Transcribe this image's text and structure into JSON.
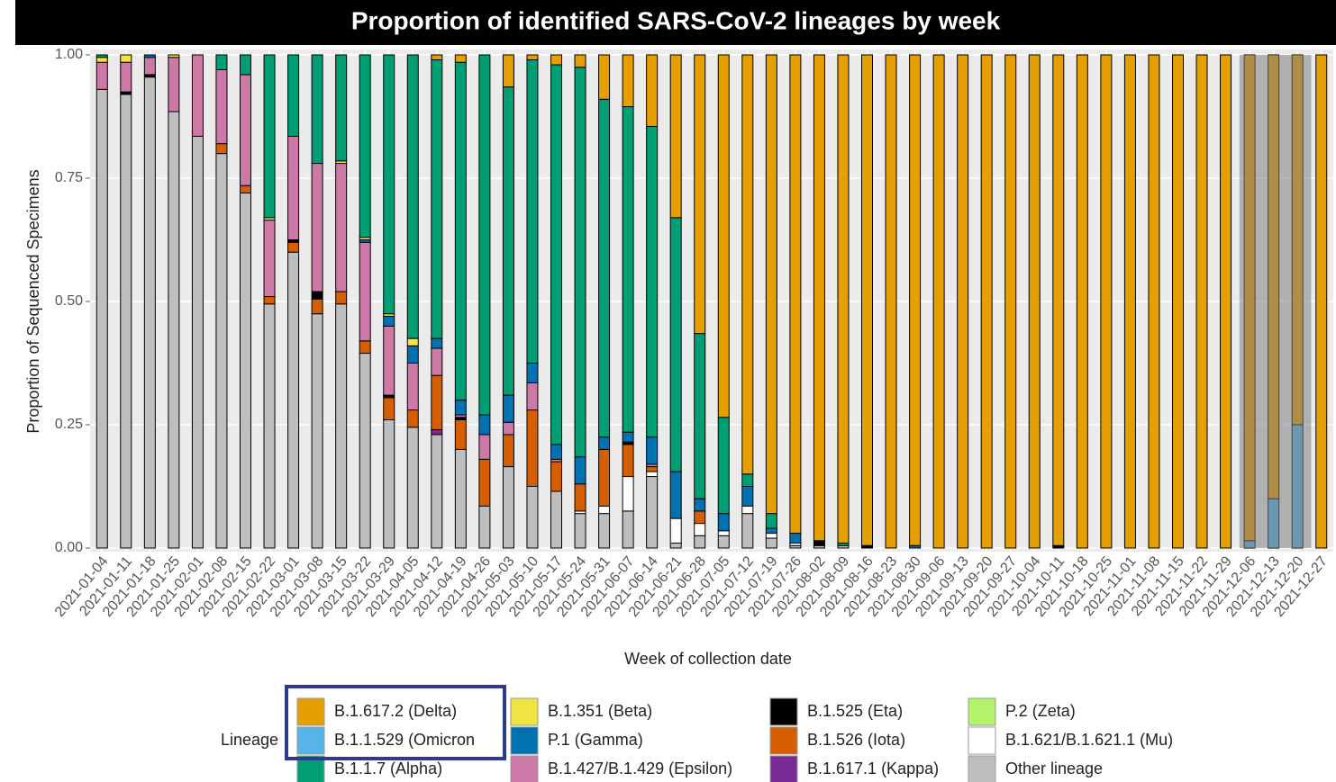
{
  "chart_data": {
    "type": "stacked_bar",
    "title": "Proportion of identified SARS-CoV-2 lineages by week",
    "x_label": "Week of collection date",
    "y_label": "Proportion of Sequenced Specimens",
    "legend_title": "Lineage",
    "categories": [
      "2021-01-04",
      "2021-01-11",
      "2021-01-18",
      "2021-01-25",
      "2021-02-01",
      "2021-02-08",
      "2021-02-15",
      "2021-02-22",
      "2021-03-01",
      "2021-03-08",
      "2021-03-15",
      "2021-03-22",
      "2021-03-29",
      "2021-04-05",
      "2021-04-12",
      "2021-04-19",
      "2021-04-26",
      "2021-05-03",
      "2021-05-10",
      "2021-05-17",
      "2021-05-24",
      "2021-05-31",
      "2021-06-07",
      "2021-06-14",
      "2021-06-21",
      "2021-06-28",
      "2021-07-05",
      "2021-07-12",
      "2021-07-19",
      "2021-07-26",
      "2021-08-02",
      "2021-08-09",
      "2021-08-16",
      "2021-08-23",
      "2021-08-30",
      "2021-09-06",
      "2021-09-13",
      "2021-09-20",
      "2021-09-27",
      "2021-10-04",
      "2021-10-11",
      "2021-10-18",
      "2021-10-25",
      "2021-11-01",
      "2021-11-08",
      "2021-11-15",
      "2021-11-22",
      "2021-11-29",
      "2021-12-06",
      "2021-12-13",
      "2021-12-20",
      "2021-12-27"
    ],
    "ylim": [
      0,
      1
    ],
    "yticks": [
      {
        "value": 0,
        "label": "0.00"
      },
      0.25,
      {
        "value": 0.5,
        "label": "0.50"
      },
      0.75,
      {
        "value": 1,
        "label": "1.00"
      }
    ],
    "grid": true,
    "series": [
      {
        "name": "B.1.617.2 (Delta)",
        "color": "#E69F00",
        "values": [
          0,
          0,
          0,
          0,
          0,
          0,
          0,
          0,
          0,
          0,
          0,
          0,
          0,
          0,
          0.01,
          0.015,
          0,
          0.065,
          0.01,
          0.02,
          0.025,
          0.09,
          0.105,
          0.145,
          0.33,
          0.565,
          0.735,
          0.85,
          0.93,
          0.97,
          0.985,
          0.99,
          0.995,
          1,
          0.995,
          1,
          1,
          1,
          1,
          1,
          0.995,
          1,
          1,
          1,
          1,
          1,
          1,
          1,
          0.985,
          0.9,
          0.75,
          1
        ]
      },
      {
        "name": "B.1.1.529 (Omicron",
        "color": "#56B4E9",
        "values": [
          0,
          0,
          0,
          0,
          0,
          0,
          0,
          0,
          0,
          0,
          0,
          0,
          0,
          0,
          0,
          0,
          0,
          0,
          0,
          0,
          0,
          0,
          0,
          0,
          0,
          0,
          0,
          0,
          0,
          0,
          0,
          0,
          0,
          0,
          0,
          0,
          0,
          0,
          0,
          0,
          0,
          0,
          0,
          0,
          0,
          0,
          0,
          0,
          0.015,
          0.1,
          0.25,
          0
        ]
      },
      {
        "name": "B.1.1.7 (Alpha)",
        "color": "#009E73",
        "values": [
          0.005,
          0,
          0,
          0,
          0,
          0.03,
          0.04,
          0.33,
          0.165,
          0.22,
          0.215,
          0.37,
          0.525,
          0.575,
          0.565,
          0.685,
          0.73,
          0.625,
          0.615,
          0.77,
          0.79,
          0.685,
          0.66,
          0.63,
          0.515,
          0.335,
          0.195,
          0.025,
          0.03,
          0,
          0,
          0.005,
          0,
          0,
          0,
          0,
          0,
          0,
          0,
          0,
          0,
          0,
          0,
          0,
          0,
          0,
          0,
          0,
          0,
          0,
          0,
          0
        ]
      },
      {
        "name": "B.1.351 (Beta)",
        "color": "#F0E442",
        "values": [
          0.01,
          0.015,
          0,
          0.005,
          0,
          0,
          0,
          0.005,
          0,
          0,
          0.005,
          0.005,
          0.005,
          0.015,
          0,
          0,
          0,
          0,
          0,
          0,
          0,
          0,
          0,
          0,
          0,
          0,
          0,
          0,
          0,
          0,
          0,
          0,
          0,
          0,
          0,
          0,
          0,
          0,
          0,
          0,
          0,
          0,
          0,
          0,
          0,
          0,
          0,
          0,
          0,
          0,
          0,
          0
        ]
      },
      {
        "name": "P.1 (Gamma)",
        "color": "#0072B2",
        "values": [
          0,
          0,
          0.005,
          0,
          0,
          0,
          0,
          0,
          0,
          0,
          0,
          0.005,
          0.02,
          0.035,
          0.02,
          0.03,
          0.04,
          0.055,
          0.04,
          0.03,
          0.055,
          0.025,
          0.02,
          0.055,
          0.095,
          0.025,
          0.035,
          0.04,
          0.01,
          0.02,
          0,
          0,
          0,
          0,
          0.005,
          0,
          0,
          0,
          0,
          0,
          0,
          0,
          0,
          0,
          0,
          0,
          0,
          0,
          0,
          0,
          0,
          0
        ]
      },
      {
        "name": "B.1.427/B.1.429 (Epsilon)",
        "color": "#CC79A7",
        "values": [
          0.055,
          0.06,
          0.035,
          0.11,
          0.165,
          0.15,
          0.225,
          0.155,
          0.21,
          0.26,
          0.26,
          0.2,
          0.14,
          0.095,
          0.055,
          0.005,
          0.05,
          0.025,
          0.055,
          0.005,
          0,
          0,
          0,
          0.005,
          0,
          0,
          0,
          0,
          0,
          0,
          0,
          0,
          0,
          0,
          0,
          0,
          0,
          0,
          0,
          0,
          0,
          0,
          0,
          0,
          0,
          0,
          0,
          0,
          0,
          0,
          0,
          0
        ]
      },
      {
        "name": "B.1.525 (Eta)",
        "color": "#000000",
        "values": [
          0,
          0.005,
          0.005,
          0,
          0,
          0,
          0,
          0,
          0.005,
          0.015,
          0,
          0,
          0.005,
          0,
          0,
          0.005,
          0,
          0,
          0,
          0,
          0,
          0,
          0.005,
          0,
          0,
          0,
          0,
          0,
          0,
          0,
          0.01,
          0,
          0.005,
          0,
          0,
          0,
          0,
          0,
          0,
          0,
          0.005,
          0,
          0,
          0,
          0,
          0,
          0,
          0,
          0,
          0,
          0,
          0
        ]
      },
      {
        "name": "B.1.526 (Iota)",
        "color": "#D55E00",
        "values": [
          0,
          0,
          0,
          0,
          0,
          0.02,
          0.015,
          0.015,
          0.02,
          0.03,
          0.025,
          0.025,
          0.045,
          0.035,
          0.11,
          0.06,
          0.095,
          0.065,
          0.155,
          0.06,
          0.055,
          0.115,
          0.065,
          0.01,
          0,
          0.025,
          0,
          0,
          0,
          0,
          0,
          0,
          0,
          0,
          0,
          0,
          0,
          0,
          0,
          0,
          0,
          0,
          0,
          0,
          0,
          0,
          0,
          0,
          0,
          0,
          0,
          0
        ]
      },
      {
        "name": "B.1.617.1 (Kappa)",
        "color": "#7A2A94",
        "values": [
          0,
          0,
          0,
          0,
          0,
          0,
          0,
          0,
          0,
          0,
          0,
          0,
          0,
          0,
          0.01,
          0,
          0,
          0,
          0,
          0,
          0,
          0,
          0,
          0,
          0,
          0,
          0,
          0,
          0,
          0,
          0,
          0,
          0,
          0,
          0,
          0,
          0,
          0,
          0,
          0,
          0,
          0,
          0,
          0,
          0,
          0,
          0,
          0,
          0,
          0,
          0,
          0
        ]
      },
      {
        "name": "P.2 (Zeta)",
        "color": "#B3F26B",
        "values": [
          0,
          0,
          0,
          0,
          0,
          0,
          0,
          0,
          0,
          0,
          0,
          0,
          0,
          0,
          0,
          0,
          0,
          0,
          0,
          0,
          0,
          0,
          0,
          0,
          0,
          0,
          0,
          0,
          0,
          0,
          0,
          0,
          0,
          0,
          0,
          0,
          0,
          0,
          0,
          0,
          0,
          0,
          0,
          0,
          0,
          0,
          0,
          0,
          0,
          0,
          0,
          0
        ]
      },
      {
        "name": "B.1.621/B.1.621.1 (Mu)",
        "color": "#FFFFFF",
        "values": [
          0,
          0,
          0,
          0,
          0,
          0,
          0,
          0,
          0,
          0,
          0,
          0,
          0,
          0,
          0,
          0,
          0,
          0,
          0,
          0,
          0.005,
          0.015,
          0.07,
          0.01,
          0.05,
          0.025,
          0.01,
          0.015,
          0.01,
          0.005,
          0,
          0,
          0,
          0,
          0,
          0,
          0,
          0,
          0,
          0,
          0,
          0,
          0,
          0,
          0,
          0,
          0,
          0,
          0,
          0,
          0,
          0
        ]
      },
      {
        "name": "Other lineage",
        "color": "#BEBEBE",
        "values": [
          0.93,
          0.92,
          0.955,
          0.885,
          0.835,
          0.8,
          0.72,
          0.495,
          0.6,
          0.475,
          0.495,
          0.395,
          0.26,
          0.245,
          0.23,
          0.2,
          0.085,
          0.165,
          0.125,
          0.115,
          0.07,
          0.07,
          0.075,
          0.145,
          0.01,
          0.025,
          0.025,
          0.07,
          0.02,
          0.005,
          0.005,
          0.005,
          0,
          0,
          0,
          0,
          0,
          0,
          0,
          0,
          0,
          0,
          0,
          0,
          0,
          0,
          0,
          0,
          0,
          0,
          0,
          0
        ]
      }
    ]
  }
}
